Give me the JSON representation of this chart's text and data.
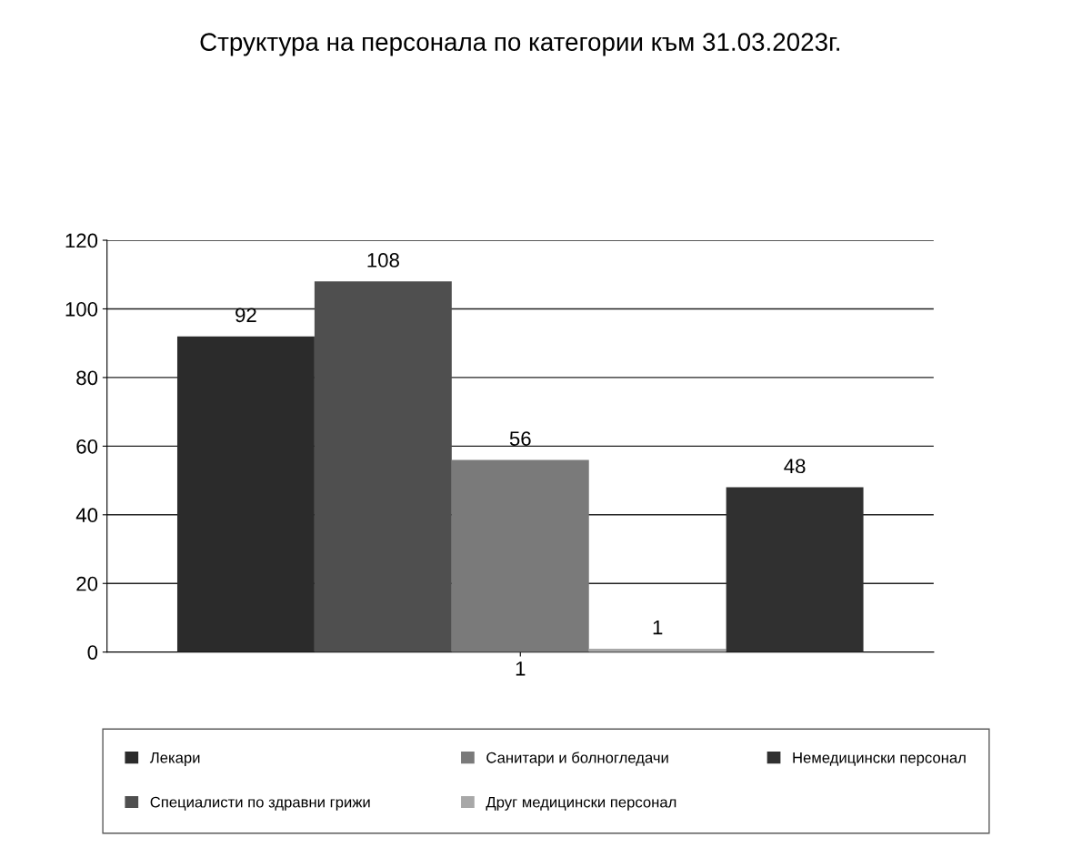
{
  "chart_data": {
    "type": "bar",
    "title": "Структура на персонала по категории към 31.03.2023г.",
    "categories": [
      "1"
    ],
    "series": [
      {
        "name": "Лекари",
        "color": "#2b2b2b",
        "values": [
          92
        ]
      },
      {
        "name": "Специалисти по здравни грижи",
        "color": "#4f4f4f",
        "values": [
          108
        ]
      },
      {
        "name": "Санитари и болногледачи",
        "color": "#7a7a7a",
        "values": [
          56
        ]
      },
      {
        "name": "Друг медицински персонал",
        "color": "#a8a8a8",
        "values": [
          1
        ]
      },
      {
        "name": "Немедицински персонал",
        "color": "#303030",
        "values": [
          48
        ]
      }
    ],
    "ylim": [
      0,
      120
    ],
    "yticks": [
      0,
      20,
      40,
      60,
      80,
      100,
      120
    ],
    "grid": "y",
    "legend": "bottom",
    "data_labels": true
  }
}
